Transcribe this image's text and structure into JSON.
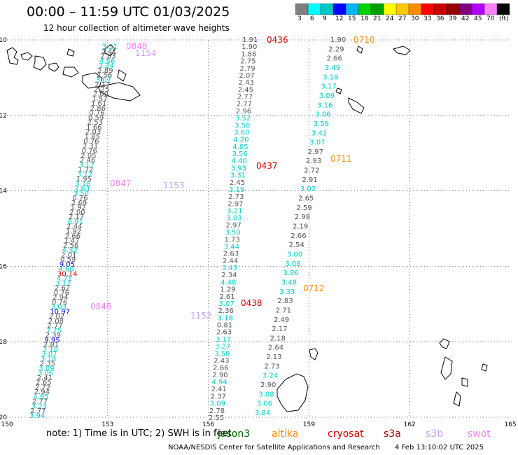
{
  "title": "00:00 – 11:59 UTC 01/03/2025",
  "subtitle": "12 hour collection of altimeter wave heights",
  "colorbar": {
    "colors": [
      "#7f7f7f",
      "#00ffff",
      "#00c8c8",
      "#0000ff",
      "#00b4ff",
      "#00d200",
      "#00a000",
      "#ffff00",
      "#ffc800",
      "#ff8c00",
      "#ff0000",
      "#c80000",
      "#960000",
      "#800080",
      "#b400ff",
      "#ff80ff",
      "#000000"
    ],
    "ticks": [
      "3",
      "6",
      "9",
      "12",
      "15",
      "18",
      "21",
      "24",
      "27",
      "30",
      "33",
      "36",
      "39",
      "42",
      "45",
      "70",
      "(ft)"
    ]
  },
  "axes": {
    "lon_ticks": [
      "150",
      "153",
      "156",
      "159",
      "162",
      "165"
    ],
    "lat_ticks": [
      "10",
      "12",
      "14",
      "16",
      "18",
      "20"
    ]
  },
  "swh_colors": {
    "grey": "#555555",
    "cyan": "#00cccc",
    "blue": "#0000cc",
    "red": "#cc0000"
  },
  "tracks": [
    {
      "label": "0436",
      "color": "#cc0000",
      "values": [
        "1.91",
        "1.90",
        "1.86",
        "2.75",
        "2.79",
        "2.07",
        "2.43",
        "2.45",
        "2.77",
        "2.77",
        "2.96",
        "3.52",
        "3.50",
        "3.60",
        "4.20",
        "4.05",
        "3.56",
        "4.40",
        "3.93",
        "3.31",
        "2.45",
        "3.19",
        "2.73",
        "2.97",
        "3.21",
        "3.03",
        "2.97",
        "3.50",
        "1.73",
        "3.44",
        "2.63",
        "2.44",
        "3.43",
        "2.34",
        "4.48",
        "1.29",
        "2.61",
        "3.07",
        "2.36",
        "3.18",
        "0.81",
        "2.63",
        "3.17",
        "3.27",
        "3.58",
        "2.43",
        "2.66",
        "2.90",
        "4.94",
        "2.41",
        "2.37",
        "3.09",
        "2.78",
        "2.55"
      ]
    },
    {
      "label": "0437",
      "color": "#cc0000",
      "values": []
    },
    {
      "label": "0438",
      "color": "#cc0000",
      "values": []
    },
    {
      "label": "0710",
      "color": "#ff8c00",
      "values": [
        "1.90",
        "2.29",
        "2.66",
        "3.49",
        "3.19",
        "3.17",
        "3.09",
        "3.16",
        "3.06",
        "3.59",
        "3.42",
        "3.07",
        "2.97",
        "2.93",
        "2.72",
        "2.91",
        "3.02",
        "2.65",
        "2.59",
        "2.98",
        "2.19",
        "2.66",
        "2.54",
        "3.00",
        "3.08",
        "3.86",
        "3.48",
        "3.33",
        "2.83",
        "2.71",
        "2.49",
        "2.17",
        "2.18",
        "2.64",
        "2.13",
        "2.73",
        "3.24",
        "2.90",
        "3.08",
        "3.06",
        "3.84"
      ]
    },
    {
      "label": "0711",
      "color": "#ff8c00",
      "values": []
    },
    {
      "label": "0712",
      "color": "#ff8c00",
      "values": []
    },
    {
      "label": "0847",
      "color": "#ff80ff",
      "values": [
        "3.21",
        "2.41",
        "2.83",
        "4.56",
        "3.24",
        "2.89",
        "2.56",
        "3.07",
        "2.17",
        "2.25",
        "2.00",
        "1.57",
        "1.61",
        "2.86",
        "0.76",
        "0.59",
        "2.53",
        "1.66",
        "2.03",
        "1.85",
        "0.76",
        "2.31",
        "0.76",
        "2.05",
        "2.46",
        "3.17",
        "1.72",
        "3.12",
        "1.95",
        "3.18",
        "7.63",
        "3.50",
        "0.76",
        "2.69",
        "1.92",
        "2.00",
        "2.17",
        "6.91",
        "2.44",
        "1.92",
        "2.66",
        "1.47",
        "2.56",
        "4.32",
        "2.01",
        "0.59",
        "9.05",
        "4.60",
        "30.14",
        "4.71",
        "3.12",
        "2.62",
        "0.76",
        "2.94",
        "0.76",
        "3.03",
        "10.97",
        "2.02",
        "2.08",
        "2.77",
        "7.75",
        "2.39",
        "9.95",
        "2.81",
        "3.10",
        "3.07",
        "3.18",
        "2.35",
        "3.09",
        "3.06",
        "2.41",
        "2.65",
        "2.72",
        "2.94",
        "4.95",
        "2.77",
        "3.23",
        "2.77",
        "3.94"
      ]
    },
    {
      "label": "0848",
      "color": "#ff80ff",
      "values": []
    },
    {
      "label": "0846",
      "color": "#ff80ff",
      "values": []
    },
    {
      "label": "1154",
      "color": "#c8a0ff",
      "values": []
    },
    {
      "label": "1153",
      "color": "#c8a0ff",
      "values": []
    },
    {
      "label": "1152",
      "color": "#c8a0ff",
      "values": []
    }
  ],
  "note_text": "note:  1) Time is in UTC;  2) SWH is in feet",
  "satellites": [
    {
      "name": "jason3",
      "color": "#006400"
    },
    {
      "name": "altika",
      "color": "#ff8c00"
    },
    {
      "name": "cryosat",
      "color": "#cc0000"
    },
    {
      "name": "s3a",
      "color": "#990000"
    },
    {
      "name": "s3b",
      "color": "#c8a0ff"
    },
    {
      "name": "swot",
      "color": "#ff80ff"
    }
  ],
  "footer_center": "NOAA/NESDIS Center for Satellite Applications and Research",
  "footer_date": "4 Feb 13:10:02 UTC 2025"
}
